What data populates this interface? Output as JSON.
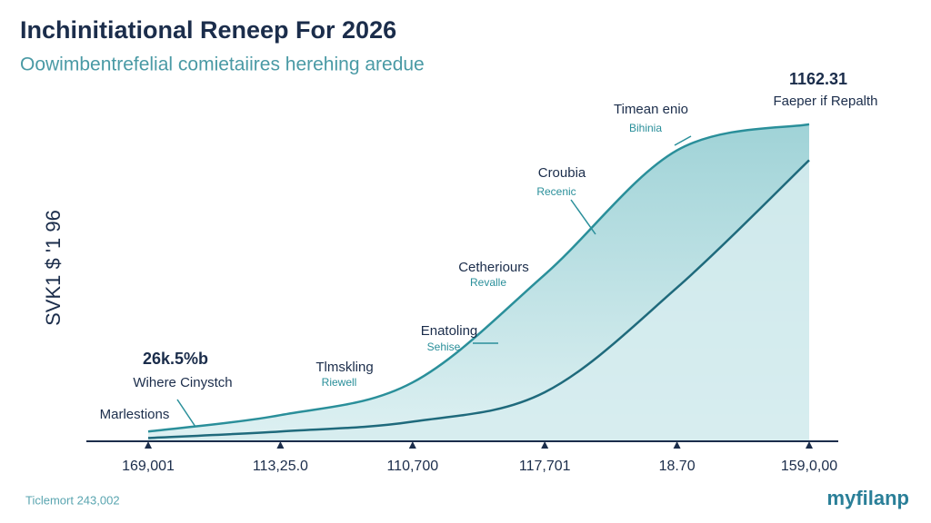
{
  "chart_data": {
    "type": "area",
    "title": "Inchinitiational Reneep For 2026",
    "subtitle": "Oowimbentrefelial comietaiires herehing aredue",
    "y_label": "SVK1 $ '1 96",
    "categories": [
      "169,001",
      "113,25.0",
      "110,700",
      "117,701",
      "18.70",
      "159,0,00"
    ],
    "ylim": [
      0,
      100
    ],
    "series": [
      {
        "name": "Timean enio",
        "color": "#2a8f9a",
        "values": [
          3,
          8,
          18,
          51,
          89,
          97
        ]
      },
      {
        "name": "Faeper if Repalth",
        "color": "#1f6a7c",
        "values": [
          1,
          3,
          6,
          15,
          47,
          86
        ]
      }
    ],
    "annotations": [
      {
        "text": "1162.31",
        "sub": "Faeper if Repalth"
      },
      {
        "text": "Timean enio",
        "sub": "Bihinia"
      },
      {
        "text": "Croubia",
        "sub": "Recenic"
      },
      {
        "text": "Cetheriours",
        "sub": "Revalle"
      },
      {
        "text": "Enatoling",
        "sub": "Sehise"
      },
      {
        "text": "Tlmskling",
        "sub": "Riewell"
      },
      {
        "text": "26k.5%b",
        "sub": "Wihere Cinystch"
      },
      {
        "text": "Marlestions"
      }
    ],
    "footer": "Ticlemort 243,002",
    "brand": "myfilanp"
  }
}
